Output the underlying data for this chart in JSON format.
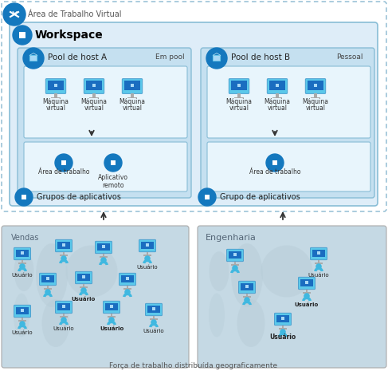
{
  "title_outer": "Área de Trabalho Virtual",
  "title_workspace": "Workspace",
  "pool_a_title": "Pool de host A",
  "pool_a_type": "Em pool",
  "pool_b_title": "Pool de host B",
  "pool_b_type": "Pessoal",
  "vm_label": "Máquina",
  "vm_sublabel": "virtual",
  "app_group_a_label1": "Área de trabalho",
  "app_group_a_label2": "Aplicativo\nremoto",
  "app_group_b_label1": "Área de trabalho",
  "grupos_label": "Grupos de aplicativos",
  "grupo_label": "Grupo de aplicativos",
  "vendas_label": "Vendas",
  "engenharia_label": "Engenharia",
  "usuario_label": "Usuário",
  "footer_label": "Força de trabalho distribuída geograficamente",
  "bg_outer": "#ffffff",
  "bg_workspace": "#ddeeff",
  "bg_pool": "#c5e0f0",
  "bg_appgroup": "#dff0fa",
  "bg_map_left": "#ccdde8",
  "bg_map_right": "#ccdde8",
  "border_dashed": "#7ab3d4",
  "border_workspace": "#7ab3d4",
  "border_pool": "#88bdd6",
  "circle_blue": "#1478be",
  "monitor_light": "#5bc8ea",
  "monitor_dark": "#1a5fa8",
  "monitor_screen": "#1478be",
  "person_color": "#4bbee8",
  "text_dark": "#222222",
  "text_gray": "#666666",
  "arrow_color": "#444444"
}
